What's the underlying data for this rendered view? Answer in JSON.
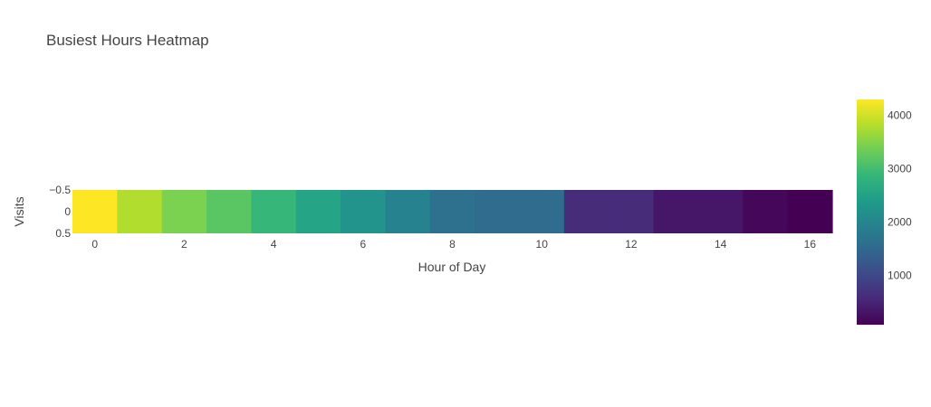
{
  "chart_data": {
    "type": "heatmap",
    "title": "Busiest Hours Heatmap",
    "xlabel": "Hour of Day",
    "ylabel": "Visits",
    "x": [
      0,
      1,
      2,
      3,
      4,
      5,
      6,
      7,
      8,
      9,
      10,
      11,
      12,
      13,
      14,
      15,
      16
    ],
    "y": [
      0
    ],
    "values": [
      4300,
      3800,
      3450,
      3200,
      2900,
      2550,
      2250,
      1950,
      1650,
      1550,
      1550,
      600,
      600,
      350,
      350,
      150,
      80
    ],
    "xlim": [
      -0.5,
      16.5
    ],
    "ylim": [
      -0.5,
      0.5
    ],
    "x_ticks": [
      "0",
      "2",
      "4",
      "6",
      "8",
      "10",
      "12",
      "14",
      "16"
    ],
    "y_ticks": [
      "−0.5",
      "0",
      "0.5"
    ],
    "colorscale": "Viridis",
    "colorbar": {
      "range": [
        80,
        4300
      ],
      "ticks": [
        {
          "value": 1000,
          "label": "1000"
        },
        {
          "value": 2000,
          "label": "2000"
        },
        {
          "value": 3000,
          "label": "3000"
        },
        {
          "value": 4000,
          "label": "4000"
        }
      ]
    }
  }
}
